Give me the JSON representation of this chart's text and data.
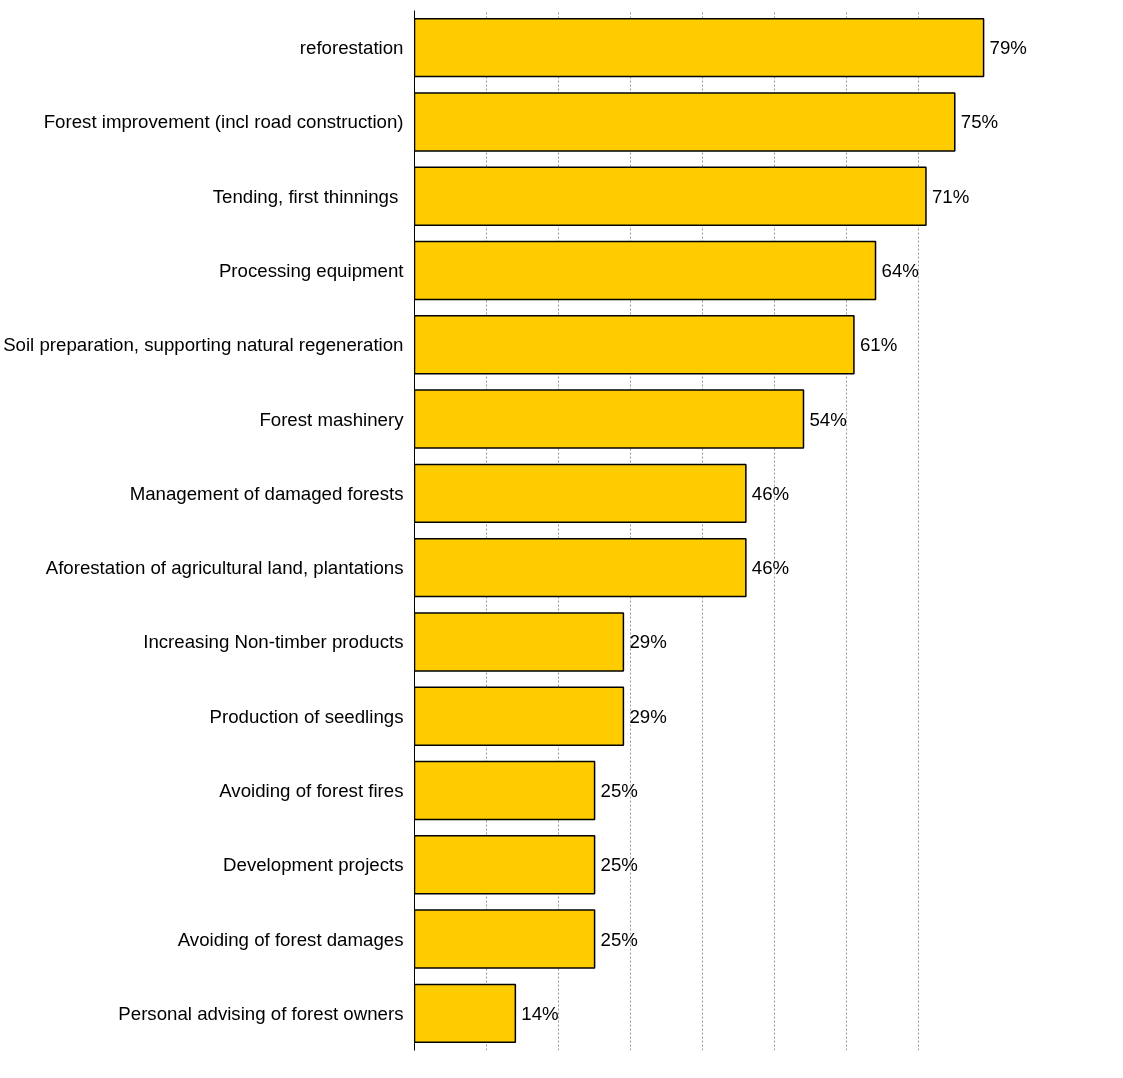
{
  "chart_data": {
    "type": "bar",
    "orientation": "horizontal",
    "categories": [
      "reforestation",
      "Forest improvement (incl road construction)",
      "Tending, first  thinnings",
      "Processing equipment",
      "Soil preparation, supporting natural regeneration",
      "Forest mashinery",
      "Management of damaged forests",
      "Aforestation of agricultural land, plantations",
      "Increasing Non-timber products",
      "Production of seedlings",
      "Avoiding of forest fires",
      "Development projects",
      "Avoiding of forest damages",
      "Personal advising of forest owners"
    ],
    "values": [
      79,
      75,
      71,
      64,
      61,
      54,
      46,
      46,
      29,
      29,
      25,
      25,
      25,
      14
    ],
    "value_labels": [
      "79%",
      "75%",
      "71%",
      "64%",
      "61%",
      "54%",
      "46%",
      "46%",
      "29%",
      "29%",
      "25%",
      "25%",
      "25%",
      "14%"
    ],
    "color": "#ffcc00",
    "xticks": [
      {
        "value": 0,
        "label": null
      },
      {
        "value": 10,
        "label": null
      },
      {
        "value": 20,
        "label": null
      },
      {
        "value": 30,
        "label": null
      },
      {
        "value": 40,
        "label": null
      },
      {
        "value": 50,
        "label": null
      },
      {
        "value": 60,
        "label": null
      },
      {
        "value": 70,
        "label": null
      }
    ],
    "grid": "x",
    "tick_labels": "y"
  }
}
